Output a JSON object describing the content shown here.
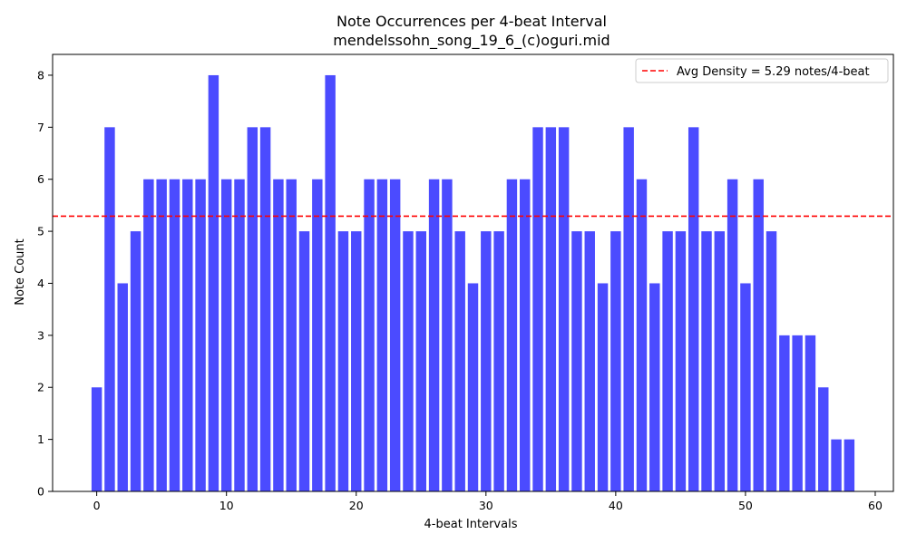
{
  "chart_data": {
    "type": "bar",
    "title": "Note Occurrences per 4-beat Interval",
    "subtitle": "mendelssohn_song_19_6_(c)oguri.mid",
    "xlabel": "4-beat Intervals",
    "ylabel": "Note Count",
    "x": [
      0,
      1,
      2,
      3,
      4,
      5,
      6,
      7,
      8,
      9,
      10,
      11,
      12,
      13,
      14,
      15,
      16,
      17,
      18,
      19,
      20,
      21,
      22,
      23,
      24,
      25,
      26,
      27,
      28,
      29,
      30,
      31,
      32,
      33,
      34,
      35,
      36,
      37,
      38,
      39,
      40,
      41,
      42,
      43,
      44,
      45,
      46,
      47,
      48,
      49,
      50,
      51,
      52,
      53,
      54,
      55,
      56,
      57,
      58
    ],
    "values": [
      2,
      7,
      4,
      5,
      6,
      6,
      6,
      6,
      6,
      8,
      6,
      6,
      7,
      7,
      6,
      6,
      5,
      6,
      8,
      5,
      5,
      6,
      6,
      6,
      5,
      5,
      6,
      6,
      5,
      4,
      5,
      5,
      6,
      6,
      7,
      7,
      7,
      5,
      5,
      4,
      5,
      7,
      6,
      4,
      5,
      5,
      7,
      5,
      5,
      6,
      4,
      6,
      5,
      3,
      3,
      3,
      2,
      1,
      1
    ],
    "xlim": [
      -3.4,
      61.4
    ],
    "ylim": [
      0,
      8.4
    ],
    "xticks": [
      0,
      10,
      20,
      30,
      40,
      50,
      60
    ],
    "yticks": [
      0,
      1,
      2,
      3,
      4,
      5,
      6,
      7,
      8
    ],
    "bar_color": "#4b4bff",
    "grid": false,
    "reference_line": {
      "value": 5.29,
      "color": "#ff0000",
      "style": "dashed",
      "label": "Avg Density = 5.29 notes/4-beat"
    },
    "legend_position": "top-right"
  }
}
